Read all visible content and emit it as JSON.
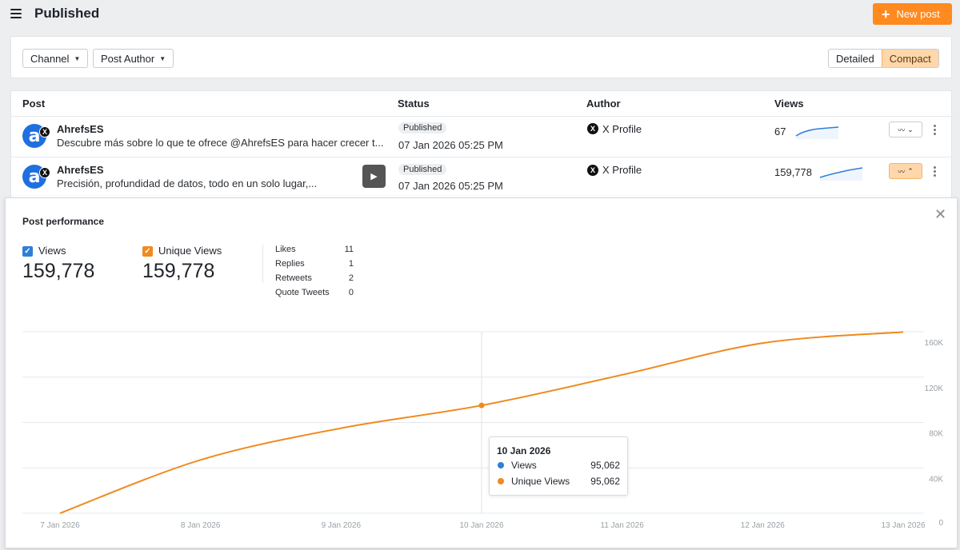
{
  "header": {
    "title": "Published",
    "new_post_label": "New post"
  },
  "filters": {
    "channel_label": "Channel",
    "author_label": "Post Author"
  },
  "view_toggle": {
    "detailed_label": "Detailed",
    "compact_label": "Compact",
    "active": "Compact"
  },
  "table": {
    "columns": {
      "post": "Post",
      "status": "Status",
      "author": "Author",
      "views": "Views"
    },
    "rows": [
      {
        "account": "AhrefsES",
        "text": "Descubre más sobre lo que te ofrece @AhrefsES para hacer crecer t...",
        "status": "Published",
        "date": "07 Jan 2026 05:25 PM",
        "author": "X Profile",
        "views": "67",
        "has_video": false
      },
      {
        "account": "AhrefsES",
        "text": "Precisión, profundidad de datos, todo en un solo lugar,...",
        "status": "Published",
        "date": "07 Jan 2026 05:25 PM",
        "author": "X Profile",
        "views": "159,778",
        "has_video": true
      }
    ]
  },
  "performance": {
    "title": "Post performance",
    "metrics": [
      {
        "label": "Views",
        "value": "159,778",
        "color": "#2f7fd8"
      },
      {
        "label": "Unique Views",
        "value": "159,778",
        "color": "#f08a1e"
      }
    ],
    "stats": [
      {
        "name": "Likes",
        "value": "11"
      },
      {
        "name": "Replies",
        "value": "1"
      },
      {
        "name": "Retweets",
        "value": "2"
      },
      {
        "name": "Quote Tweets",
        "value": "0"
      }
    ],
    "tooltip": {
      "date": "10 Jan 2026",
      "rows": [
        {
          "label": "Views",
          "value": "95,062",
          "color": "#2f7fd8"
        },
        {
          "label": "Unique Views",
          "value": "95,062",
          "color": "#f08a1e"
        }
      ]
    }
  },
  "chart_data": {
    "type": "line",
    "x": [
      "7 Jan 2026",
      "8 Jan 2026",
      "9 Jan 2026",
      "10 Jan 2026",
      "11 Jan 2026",
      "12 Jan 2026",
      "13 Jan 2026"
    ],
    "series": [
      {
        "name": "Views",
        "values": [
          0,
          47000,
          75000,
          95062,
          122000,
          150000,
          159778
        ]
      },
      {
        "name": "Unique Views",
        "values": [
          0,
          47000,
          75000,
          95062,
          122000,
          150000,
          159778
        ]
      }
    ],
    "y_ticks": [
      "0",
      "40K",
      "80K",
      "120K",
      "160K"
    ],
    "ylim": [
      0,
      160000
    ],
    "highlight_index": 3,
    "line_color": "#f08a1e",
    "grid": true
  }
}
